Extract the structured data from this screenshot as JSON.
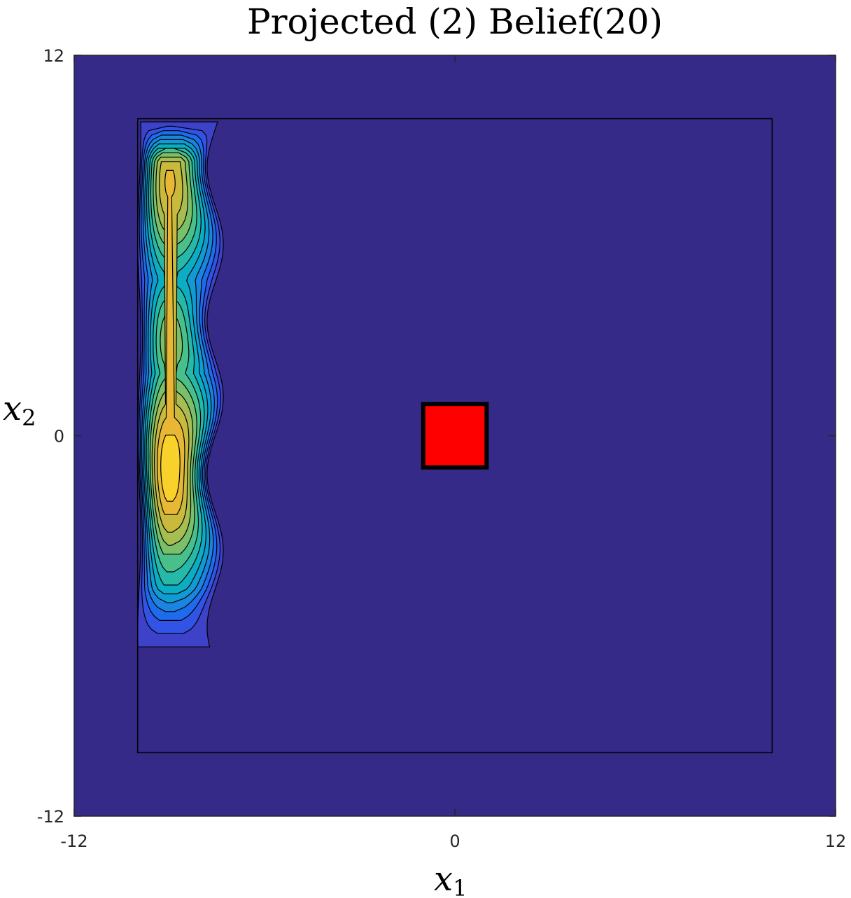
{
  "chart_data": {
    "type": "contour",
    "title": "Projected (2) Belief(20)",
    "xlabel": "x",
    "xlabel_sub": "1",
    "ylabel": "x",
    "ylabel_sub": "2",
    "xlim": [
      -12,
      12
    ],
    "ylim": [
      -12,
      12
    ],
    "xticks": [
      -12,
      0,
      12
    ],
    "yticks": [
      -12,
      0,
      12
    ],
    "xtick_labels": [
      "-12",
      "0",
      "12"
    ],
    "ytick_labels": [
      "-12",
      "0",
      "12"
    ],
    "background_color": "#352A87",
    "boundary_box": {
      "x": [
        -10,
        10
      ],
      "y": [
        -10,
        10
      ]
    },
    "target": {
      "x": [
        -1,
        1
      ],
      "y": [
        -1,
        1
      ],
      "color": "#FF0000"
    },
    "belief": {
      "x_center": -9,
      "peaks": [
        {
          "y": 8,
          "level": 0.82
        },
        {
          "y": 3,
          "level": 0.58
        },
        {
          "y": -1,
          "level": 1.0
        }
      ],
      "y_range": [
        -6.8,
        9.9
      ],
      "x_range": [
        -10,
        -7.3
      ],
      "levels": 13,
      "colormap": [
        "#3E42C8",
        "#3153E6",
        "#1E6CEE",
        "#1A85E0",
        "#0F9CD3",
        "#0BADC2",
        "#26B8A9",
        "#49C08C",
        "#7ABF6A",
        "#A6BD52",
        "#C9BA3E",
        "#E8B835",
        "#F9D12B",
        "#FAF01A"
      ]
    }
  }
}
